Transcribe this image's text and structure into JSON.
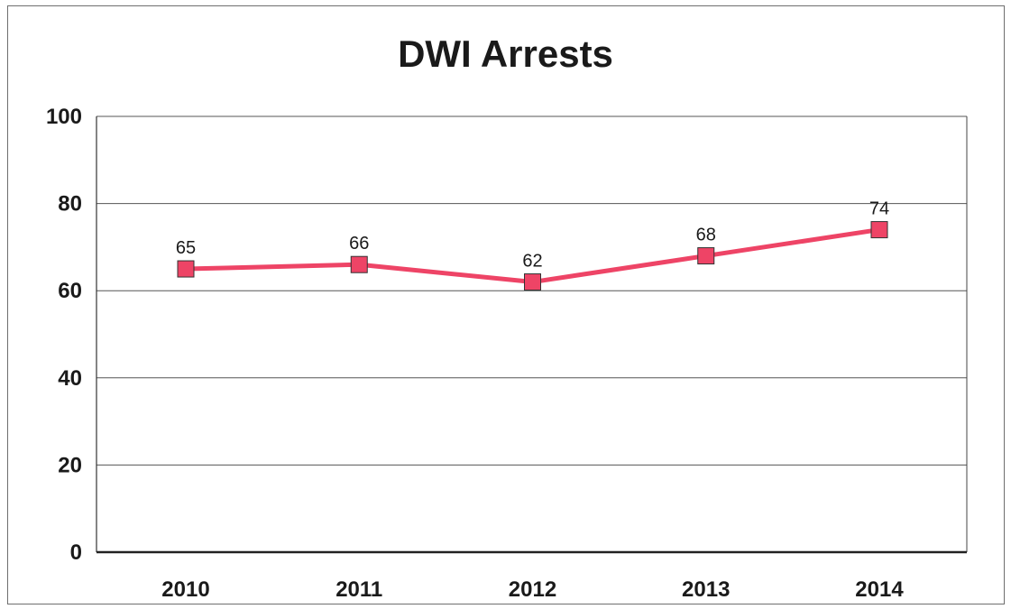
{
  "chart_data": {
    "type": "line",
    "title": "DWI Arrests",
    "xlabel": "",
    "ylabel": "",
    "categories": [
      "2010",
      "2011",
      "2012",
      "2013",
      "2014"
    ],
    "series": [
      {
        "values": [
          65,
          66,
          62,
          68,
          74
        ],
        "color": "#ee4466"
      }
    ],
    "data_labels": [
      "65",
      "66",
      "62",
      "68",
      "74"
    ],
    "ylim": [
      0,
      100
    ],
    "yticks": [
      0,
      20,
      40,
      60,
      80,
      100
    ],
    "ytick_labels": [
      "0",
      "20",
      "40",
      "60",
      "80",
      "100"
    ],
    "grid": true,
    "legend": "none"
  }
}
